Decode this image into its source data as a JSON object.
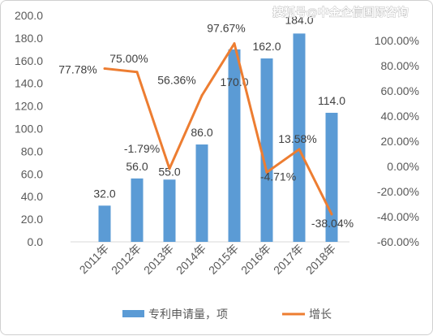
{
  "watermark": "搜狐号@中金企信国际咨询",
  "colors": {
    "bar": "#5b9bd5",
    "line": "#ed7d31",
    "axis_text": "#595959"
  },
  "chart_data": {
    "type": "bar",
    "categories": [
      "2011年",
      "2012年",
      "2013年",
      "2014年",
      "2015年",
      "2016年",
      "2017年",
      "2018年"
    ],
    "series": [
      {
        "name": "专利申请量，项",
        "type": "bar",
        "axis": "left",
        "values": [
          32.0,
          56.0,
          55.0,
          86.0,
          170.0,
          162.0,
          184.0,
          114.0
        ],
        "labels": [
          "32.0",
          "56.0",
          "55.0",
          "86.0",
          "170.0",
          "162.0",
          "184.0",
          "114.0"
        ]
      },
      {
        "name": "增长",
        "type": "line",
        "axis": "right",
        "values": [
          77.78,
          75.0,
          -1.79,
          56.36,
          97.67,
          -4.71,
          13.58,
          -38.04
        ],
        "labels": [
          "77.78%",
          "75.00%",
          "-1.79%",
          "56.36%",
          "97.67%",
          "-4.71%",
          "13.58%",
          "-38.04%"
        ]
      }
    ],
    "y_left": {
      "ylim": [
        0,
        200
      ],
      "ticks": [
        "0.0",
        "20.0",
        "40.0",
        "60.0",
        "80.0",
        "100.0",
        "120.0",
        "140.0",
        "160.0",
        "180.0",
        "200.0"
      ]
    },
    "y_right": {
      "ylim": [
        -60,
        120
      ],
      "ticks": [
        "-60.00%",
        "-40.00%",
        "-20.00%",
        "0.00%",
        "20.00%",
        "40.00%",
        "60.00%",
        "80.00%",
        "100.00%"
      ]
    },
    "grid": false,
    "legend": "bottom"
  }
}
